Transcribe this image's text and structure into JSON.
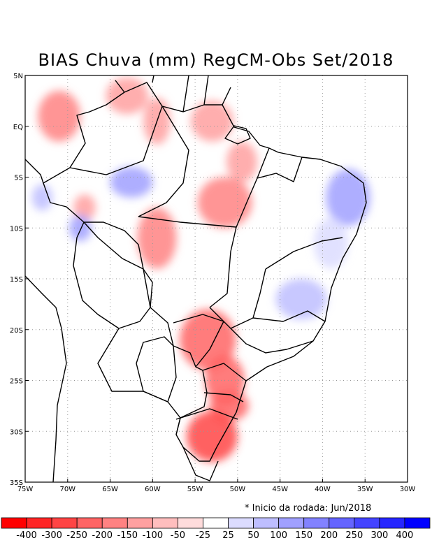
{
  "title": "BIAS Chuva (mm) RegCM-Obs Set/2018",
  "note": "* Inicio da rodada: Jun/2018",
  "axes": {
    "lon_ticks": [
      "75W",
      "70W",
      "65W",
      "60W",
      "55W",
      "50W",
      "45W",
      "40W",
      "35W",
      "30W"
    ],
    "lat_ticks": [
      "5N",
      "EQ",
      "5S",
      "10S",
      "15S",
      "20S",
      "25S",
      "30S",
      "35S"
    ]
  },
  "colorbar": {
    "colors": [
      "#ff0000",
      "#ff2626",
      "#ff4444",
      "#ff6464",
      "#ff8282",
      "#ffa0a0",
      "#ffbebe",
      "#ffdcdc",
      "#ffffff",
      "#dcdcff",
      "#bebeff",
      "#a0a0ff",
      "#8282ff",
      "#6464ff",
      "#4444ff",
      "#2626ff",
      "#0000ff"
    ],
    "labels": [
      "-400",
      "-300",
      "-250",
      "-200",
      "-150",
      "-100",
      "-50",
      "-25",
      "25",
      "50",
      "100",
      "150",
      "200",
      "250",
      "300",
      "400"
    ]
  },
  "map_data": {
    "type": "anomaly-map",
    "region": "Brasil",
    "lon_range": [
      -75,
      -30
    ],
    "lat_range": [
      -35,
      5
    ],
    "anomalies": [
      {
        "lon": -71.0,
        "lat": 1.0,
        "rx": 2.5,
        "ry": 2.5,
        "level": 4
      },
      {
        "lon": -63.0,
        "lat": 3.0,
        "rx": 2.5,
        "ry": 1.8,
        "level": 5
      },
      {
        "lon": -59.5,
        "lat": 0.5,
        "rx": 1.6,
        "ry": 2.3,
        "level": 5
      },
      {
        "lon": -53.0,
        "lat": 0.5,
        "rx": 2.5,
        "ry": 2.0,
        "level": 5
      },
      {
        "lon": -49.5,
        "lat": -3.5,
        "rx": 1.8,
        "ry": 2.0,
        "level": 5
      },
      {
        "lon": -51.5,
        "lat": -7.5,
        "rx": 3.2,
        "ry": 2.5,
        "level": 4
      },
      {
        "lon": -59.5,
        "lat": -11.0,
        "rx": 2.3,
        "ry": 3.0,
        "level": 4
      },
      {
        "lon": -68.0,
        "lat": -8.0,
        "rx": 1.3,
        "ry": 1.3,
        "level": 5
      },
      {
        "lon": -53.5,
        "lat": -21.0,
        "rx": 3.3,
        "ry": 3.0,
        "level": 3
      },
      {
        "lon": -51.5,
        "lat": -25.0,
        "rx": 2.3,
        "ry": 2.5,
        "level": 3
      },
      {
        "lon": -51.0,
        "lat": -27.5,
        "rx": 2.3,
        "ry": 1.5,
        "level": 3
      },
      {
        "lon": -53.0,
        "lat": -30.5,
        "rx": 3.0,
        "ry": 2.5,
        "level": 2
      },
      {
        "lon": -62.5,
        "lat": -5.5,
        "rx": 2.5,
        "ry": 1.5,
        "level": 11
      },
      {
        "lon": -73.0,
        "lat": -7.0,
        "rx": 1.2,
        "ry": 1.3,
        "level": 10
      },
      {
        "lon": -68.5,
        "lat": -10.0,
        "rx": 1.3,
        "ry": 1.3,
        "level": 11
      },
      {
        "lon": -37.0,
        "lat": -7.0,
        "rx": 2.6,
        "ry": 2.8,
        "level": 11
      },
      {
        "lon": -42.5,
        "lat": -17.0,
        "rx": 3.0,
        "ry": 2.0,
        "level": 10
      },
      {
        "lon": -39.0,
        "lat": -11.5,
        "rx": 2.0,
        "ry": 2.5,
        "level": 9
      }
    ]
  }
}
